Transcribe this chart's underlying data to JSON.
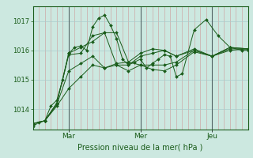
{
  "bg_color": "#cce8e0",
  "plot_bg_color": "#cce8e0",
  "grid_color_v": "#cc9999",
  "grid_color_h": "#aacccc",
  "line_color": "#1a5c1a",
  "text_color": "#1a5c1a",
  "xlabel": "Pression niveau de la mer( hPa )",
  "xtick_labels": [
    "Mar",
    "Mer",
    "Jeu"
  ],
  "xtick_positions": [
    24,
    72,
    120
  ],
  "vline_major": [
    24,
    72,
    120
  ],
  "xlim": [
    0,
    144
  ],
  "ylim": [
    1013.3,
    1017.5
  ],
  "yticks": [
    1014,
    1015,
    1016,
    1017
  ],
  "series": [
    [
      0,
      4,
      8,
      12,
      16,
      20,
      24,
      28,
      32,
      36,
      40,
      44,
      48,
      52,
      56,
      60,
      64,
      68,
      72,
      76,
      80,
      84,
      88,
      92,
      96,
      100,
      108,
      116,
      124,
      132,
      140,
      144
    ],
    [
      1013.4,
      1013.55,
      1013.6,
      1014.1,
      1014.3,
      1015.0,
      1015.9,
      1016.1,
      1016.15,
      1016.0,
      1016.8,
      1017.1,
      1017.2,
      1016.85,
      1016.4,
      1015.7,
      1015.5,
      1015.6,
      1015.7,
      1015.4,
      1015.55,
      1015.7,
      1015.85,
      1015.8,
      1015.1,
      1015.2,
      1016.7,
      1017.05,
      1016.5,
      1016.1,
      1016.0,
      1016.0
    ],
    [
      0,
      8,
      16,
      24,
      32,
      40,
      48,
      56,
      64,
      72,
      80,
      88,
      96,
      108,
      120,
      132,
      144
    ],
    [
      1013.5,
      1013.6,
      1014.2,
      1015.9,
      1016.1,
      1016.3,
      1016.6,
      1016.6,
      1015.6,
      1015.5,
      1015.5,
      1015.5,
      1015.6,
      1016.0,
      1015.8,
      1016.05,
      1016.05
    ],
    [
      0,
      8,
      16,
      24,
      32,
      40,
      48,
      56,
      64,
      72,
      80,
      88,
      96,
      108,
      120,
      132,
      144
    ],
    [
      1013.5,
      1013.6,
      1014.2,
      1015.85,
      1015.9,
      1016.5,
      1016.6,
      1015.5,
      1015.3,
      1015.5,
      1015.35,
      1015.3,
      1015.5,
      1015.95,
      1015.8,
      1016.0,
      1016.05
    ],
    [
      0,
      8,
      16,
      24,
      32,
      40,
      48,
      56,
      64,
      72,
      80,
      88,
      96,
      108,
      120,
      132,
      144
    ],
    [
      1013.5,
      1013.6,
      1014.15,
      1015.3,
      1015.55,
      1015.8,
      1015.4,
      1015.5,
      1015.5,
      1015.8,
      1015.9,
      1016.0,
      1015.8,
      1016.05,
      1015.8,
      1016.1,
      1016.05
    ],
    [
      0,
      8,
      16,
      24,
      32,
      40,
      48,
      56,
      64,
      72,
      80,
      88,
      96,
      108,
      120,
      132,
      144
    ],
    [
      1013.5,
      1013.6,
      1014.1,
      1014.7,
      1015.1,
      1015.5,
      1015.4,
      1015.55,
      1015.6,
      1015.9,
      1016.05,
      1016.0,
      1015.8,
      1016.0,
      1015.8,
      1016.1,
      1016.05
    ]
  ]
}
